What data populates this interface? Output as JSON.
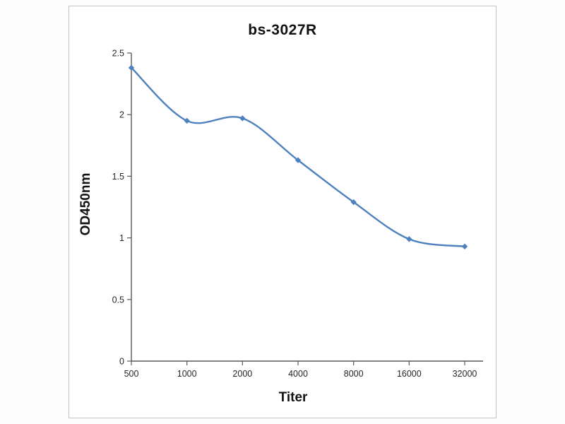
{
  "chart_data": {
    "type": "line",
    "title": "bs-3027R",
    "xlabel": "Titer",
    "ylabel": "OD450nm",
    "categories": [
      "500",
      "1000",
      "2000",
      "4000",
      "8000",
      "16000",
      "32000"
    ],
    "series": [
      {
        "name": "bs-3027R",
        "values": [
          2.38,
          1.95,
          1.97,
          1.63,
          1.29,
          0.99,
          0.93
        ]
      }
    ],
    "ylim": [
      0,
      2.5
    ],
    "yticks": [
      0,
      0.5,
      1,
      1.5,
      2,
      2.5
    ],
    "grid": false,
    "legend": "none",
    "line_color": "#4f81bd",
    "axis_color": "#595959",
    "marker": "diamond"
  }
}
